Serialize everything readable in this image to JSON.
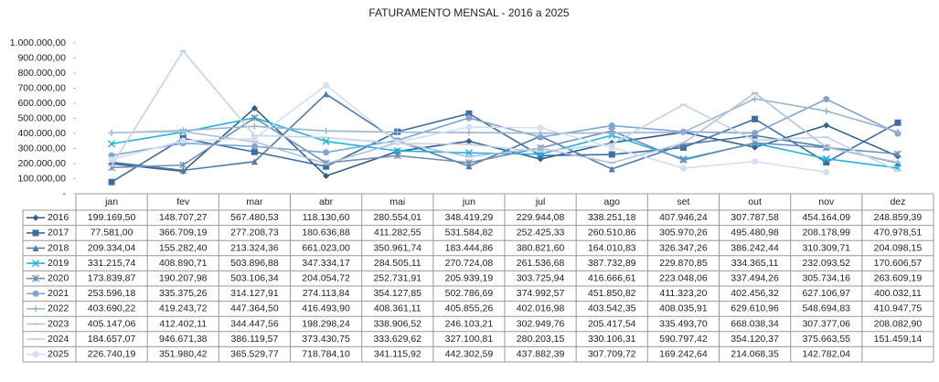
{
  "chart_data": {
    "type": "line",
    "title": "FATURAMENTO MENSAL - 2016  a  2025",
    "categories": [
      "jan",
      "fev",
      "mar",
      "abr",
      "mai",
      "jun",
      "jul",
      "ago",
      "set",
      "out",
      "nov",
      "dez"
    ],
    "ylim": [
      0,
      1000000
    ],
    "yticks": [
      {
        "value": 0,
        "label": "-"
      },
      {
        "value": 100000,
        "label": "100.000,00"
      },
      {
        "value": 200000,
        "label": "200.000,00"
      },
      {
        "value": 300000,
        "label": "300.000,00"
      },
      {
        "value": 400000,
        "label": "400.000,00"
      },
      {
        "value": 500000,
        "label": "500.000,00"
      },
      {
        "value": 600000,
        "label": "600.000,00"
      },
      {
        "value": 700000,
        "label": "700.000,00"
      },
      {
        "value": 800000,
        "label": "800.000,00"
      },
      {
        "value": 900000,
        "label": "900.000,00"
      },
      {
        "value": 1000000,
        "label": "1.000.000,00"
      }
    ],
    "grid": false,
    "series": [
      {
        "name": "2016",
        "color": "#2f5f8f",
        "marker": "diamond",
        "values": [
          199169.5,
          148707.27,
          567480.53,
          118130.6,
          280554.01,
          348419.29,
          229944.08,
          338251.18,
          407946.24,
          307787.58,
          454164.09,
          248859.39
        ],
        "value_labels": [
          "199.169,50",
          "148.707,27",
          "567.480,53",
          "118.130,60",
          "280.554,01",
          "348.419,29",
          "229.944,08",
          "338.251,18",
          "407.946,24",
          "307.787,58",
          "454.164,09",
          "248.859,39"
        ]
      },
      {
        "name": "2017",
        "color": "#3b6ea6",
        "marker": "square",
        "values": [
          77581.0,
          366709.19,
          277208.73,
          180636.88,
          411282.55,
          531584.82,
          252425.33,
          260510.86,
          305970.26,
          495480.98,
          208178.99,
          470978.51
        ],
        "value_labels": [
          "77.581,00",
          "366.709,19",
          "277.208,73",
          "180.636,88",
          "411.282,55",
          "531.584,82",
          "252.425,33",
          "260.510,86",
          "305.970,26",
          "495.480,98",
          "208.178,99",
          "470.978,51"
        ]
      },
      {
        "name": "2018",
        "color": "#4d7ca9",
        "marker": "triangle",
        "values": [
          209334.04,
          155282.4,
          213324.36,
          661023.0,
          350961.74,
          183444.86,
          380821.6,
          164010.83,
          326347.26,
          386242.44,
          310309.71,
          204098.15
        ],
        "value_labels": [
          "209.334,04",
          "155.282,40",
          "213.324,36",
          "661.023,00",
          "350.961,74",
          "183.444,86",
          "380.821,60",
          "164.010,83",
          "326.347,26",
          "386.242,44",
          "310.309,71",
          "204.098,15"
        ]
      },
      {
        "name": "2019",
        "color": "#1eb4e4",
        "marker": "x",
        "values": [
          331215.74,
          408890.71,
          503896.88,
          347334.17,
          284505.11,
          270724.08,
          261536.68,
          387732.89,
          229870.85,
          334365.11,
          232093.52,
          170606.57
        ],
        "value_labels": [
          "331.215,74",
          "408.890,71",
          "503.896,88",
          "347.334,17",
          "284.505,11",
          "270.724,08",
          "261.536,68",
          "387.732,89",
          "229.870,85",
          "334.365,11",
          "232.093,52",
          "170.606,57"
        ]
      },
      {
        "name": "2020",
        "color": "#6f90b4",
        "marker": "star",
        "values": [
          173839.87,
          190207.98,
          503106.34,
          204054.72,
          252731.91,
          205939.19,
          303725.94,
          416666.61,
          223048.06,
          337494.26,
          305734.16,
          263609.19
        ],
        "value_labels": [
          "173.839,87",
          "190.207,98",
          "503.106,34",
          "204.054,72",
          "252.731,91",
          "205.939,19",
          "303.725,94",
          "416.666,61",
          "223.048,06",
          "337.494,26",
          "305.734,16",
          "263.609,19"
        ]
      },
      {
        "name": "2021",
        "color": "#7fa5d0",
        "marker": "circle",
        "values": [
          253596.18,
          335375.26,
          314127.91,
          274113.84,
          354127.85,
          502786.69,
          374992.57,
          451850.82,
          411323.2,
          402456.32,
          627106.97,
          400032.11
        ],
        "value_labels": [
          "253.596,18",
          "335.375,26",
          "314.127,91",
          "274.113,84",
          "354.127,85",
          "502.786,69",
          "374.992,57",
          "451.850,82",
          "411.323,20",
          "402.456,32",
          "627.106,97",
          "400.032,11"
        ]
      },
      {
        "name": "2022",
        "color": "#9ab4d2",
        "marker": "plus",
        "values": [
          403690.22,
          419243.72,
          447364.5,
          416493.9,
          408361.11,
          405855.26,
          402016.98,
          403542.35,
          408035.91,
          629610.96,
          548694.83,
          410947.75
        ],
        "value_labels": [
          "403.690,22",
          "419.243,72",
          "447.364,50",
          "416.493,90",
          "408.361,11",
          "405.855,26",
          "402.016,98",
          "403.542,35",
          "408.035,91",
          "629.610,96",
          "548.694,83",
          "410.947,75"
        ]
      },
      {
        "name": "2023",
        "color": "#aec3da",
        "marker": "dash",
        "values": [
          405147.06,
          412402.11,
          344447.56,
          198298.24,
          338906.52,
          246103.21,
          302949.76,
          205417.54,
          335493.7,
          668038.34,
          307377.06,
          208082.9
        ],
        "value_labels": [
          "405.147,06",
          "412.402,11",
          "344.447,56",
          "198.298,24",
          "338.906,52",
          "246.103,21",
          "302.949,76",
          "205.417,54",
          "335.493,70",
          "668.038,34",
          "307.377,06",
          "208.082,90"
        ]
      },
      {
        "name": "2024",
        "color": "#c3d3e6",
        "marker": "dash",
        "values": [
          184657.07,
          946671.38,
          386119.57,
          373430.75,
          333629.62,
          327100.81,
          280203.15,
          330106.31,
          590797.42,
          354120.37,
          375663.55,
          151459.14
        ],
        "value_labels": [
          "184.657,07",
          "946.671,38",
          "386.119,57",
          "373.430,75",
          "333.629,62",
          "327.100,81",
          "280.203,15",
          "330.106,31",
          "590.797,42",
          "354.120,37",
          "375.663,55",
          "151.459,14"
        ]
      },
      {
        "name": "2025",
        "color": "#d2dff0",
        "marker": "circle",
        "values": [
          226740.19,
          351980.42,
          365529.77,
          718784.1,
          341115.92,
          442302.59,
          437882.39,
          307709.72,
          169242.64,
          214068.35,
          142782.04,
          null
        ],
        "value_labels": [
          "226.740,19",
          "351.980,42",
          "365.529,77",
          "718.784,10",
          "341.115,92",
          "442.302,59",
          "437.882,39",
          "307.709,72",
          "169.242,64",
          "214.068,35",
          "142.782,04",
          null
        ]
      }
    ]
  }
}
